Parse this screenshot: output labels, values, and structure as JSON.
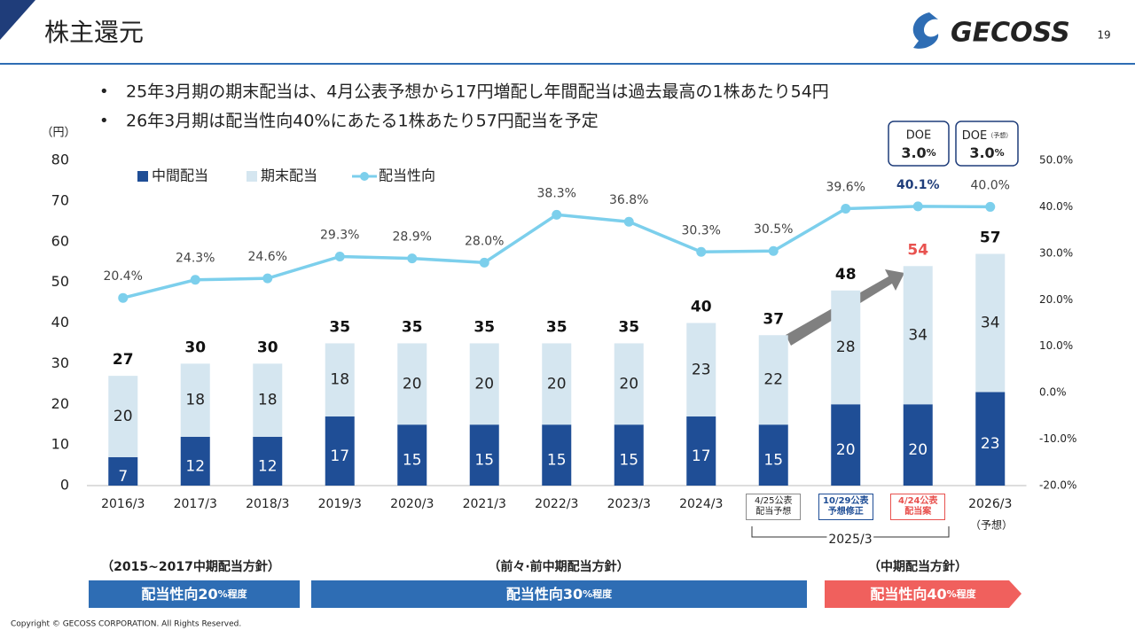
{
  "header": {
    "title": "株主還元",
    "page": "19",
    "logo": "GECOSS"
  },
  "bullets": [
    "25年3月期の期末配当は、4月公表予想から17円増配し年間配当は過去最高の1株あたり54円",
    "26年3月期は配当性向40%にあたる1株あたり57円配当を予定"
  ],
  "doe": [
    {
      "label": "DOE",
      "note": null,
      "value": "3.0",
      "unit": "%"
    },
    {
      "label": "DOE",
      "note": "（予想）",
      "value": "3.0",
      "unit": "%"
    }
  ],
  "chart_data": {
    "type": "bar",
    "stacked": true,
    "y_unit_label": "（円）",
    "categories": [
      "2016/3",
      "2017/3",
      "2018/3",
      "2019/3",
      "2020/3",
      "2021/3",
      "2022/3",
      "2023/3",
      "2024/3",
      "4/25公表\n配当予想",
      "10/29公表\n予想修正",
      "4/24公表\n配当案",
      "2026/3"
    ],
    "category_box_colors": [
      null,
      null,
      null,
      null,
      null,
      null,
      null,
      null,
      null,
      "#8c8c8c",
      "#1f4e96",
      "#e8524f",
      null
    ],
    "x_group_label": "2025/3",
    "forecast_note": "（予想）",
    "series": [
      {
        "name": "中間配当",
        "type": "bar",
        "color": "#1f4e96",
        "values": [
          7,
          12,
          12,
          17,
          15,
          15,
          15,
          15,
          17,
          15,
          20,
          20,
          23
        ]
      },
      {
        "name": "期末配当",
        "type": "bar",
        "color": "#d5e6f0",
        "values": [
          20,
          18,
          18,
          18,
          20,
          20,
          20,
          20,
          23,
          22,
          28,
          34,
          34
        ]
      },
      {
        "name": "配当性向",
        "type": "line",
        "axis": "y2",
        "color": "#7ccfec",
        "values": [
          20.4,
          24.3,
          24.6,
          29.3,
          28.9,
          28.0,
          38.3,
          36.8,
          30.3,
          30.5,
          39.6,
          40.1,
          40.0
        ],
        "value_labels": [
          "20.4%",
          "24.3%",
          "24.6%",
          "29.3%",
          "28.9%",
          "28.0%",
          "38.3%",
          "36.8%",
          "30.3%",
          "30.5%",
          "39.6%",
          "40.1%",
          "40.0%"
        ]
      }
    ],
    "totals": [
      27,
      30,
      30,
      35,
      35,
      35,
      35,
      35,
      40,
      37,
      48,
      54,
      57
    ],
    "total_colors": [
      "#111",
      "#111",
      "#111",
      "#111",
      "#111",
      "#111",
      "#111",
      "#111",
      "#111",
      "#111",
      "#111",
      "#e8524f",
      "#111"
    ],
    "ylim": [
      0,
      80
    ],
    "yticks": [
      0,
      10,
      20,
      30,
      40,
      50,
      60,
      70,
      80
    ],
    "y2lim": [
      -20,
      50
    ],
    "y2ticks": [
      {
        "value": -20,
        "label": "-20.0%"
      },
      {
        "value": -10,
        "label": "-10.0%"
      },
      {
        "value": 0,
        "label": "0.0%"
      },
      {
        "value": 10,
        "label": "10.0%"
      },
      {
        "value": 20,
        "label": "20.0%"
      },
      {
        "value": 30,
        "label": "30.0%"
      },
      {
        "value": 40,
        "label": "40.0%"
      },
      {
        "value": 50,
        "label": "50.0%"
      }
    ],
    "grid": false
  },
  "policies": [
    {
      "heading": "（2015~2017中期配当方針）",
      "main": "配当性向20",
      "suffix": "%程度",
      "color": "#2e6db4"
    },
    {
      "heading": "（前々·前中期配当方針）",
      "main": "配当性向30",
      "suffix": "%程度",
      "color": "#2e6db4"
    },
    {
      "heading": "（中期配当方針）",
      "main": "配当性向40",
      "suffix": "%程度",
      "color": "#f0605d"
    }
  ],
  "footer": "Copyright © GECOSS CORPORATION. All Rights Reserved."
}
